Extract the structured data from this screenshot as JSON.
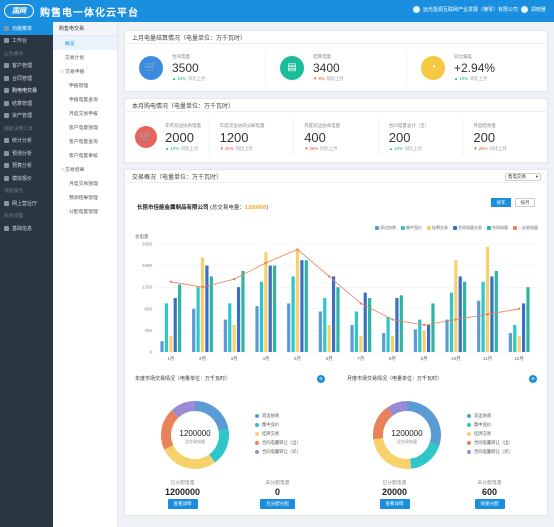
{
  "header": {
    "logo": "国网",
    "title": "购售电一体化云平台",
    "company": "远光能源互联网产业发展（横琴）有限公司",
    "user": "郑晓雅"
  },
  "sidebar": [
    {
      "label": "功能菜单",
      "type": "item",
      "active": true
    },
    {
      "label": "工作台",
      "type": "item"
    },
    {
      "label": "业务模块",
      "type": "group"
    },
    {
      "label": "客户管理",
      "type": "item"
    },
    {
      "label": "合同管理",
      "type": "item"
    },
    {
      "label": "购电电交易",
      "type": "item",
      "highlight": true
    },
    {
      "label": "结算管理",
      "type": "item"
    },
    {
      "label": "资产管理",
      "type": "item"
    },
    {
      "label": "辅助决策工具",
      "type": "group"
    },
    {
      "label": "统计分析",
      "type": "item"
    },
    {
      "label": "预测分析",
      "type": "item"
    },
    {
      "label": "预算分析",
      "type": "item"
    },
    {
      "label": "模拟报价",
      "type": "item"
    },
    {
      "label": "增值服务",
      "type": "group"
    },
    {
      "label": "网上营业厅",
      "type": "item"
    },
    {
      "label": "系统设置",
      "type": "group"
    },
    {
      "label": "基础信息",
      "type": "item"
    }
  ],
  "subnav": {
    "head": "购售电交易",
    "items": [
      {
        "label": "概览",
        "cls": "active"
      },
      {
        "label": "交易计划",
        "cls": ""
      },
      {
        "label": "○ 交易申报",
        "cls": "grp"
      },
      {
        "label": "申报管理",
        "cls": "l2"
      },
      {
        "label": "申报电量查询",
        "cls": "l2"
      },
      {
        "label": "月度交易申报",
        "cls": "l2"
      },
      {
        "label": "客户电量管理",
        "cls": "l2"
      },
      {
        "label": "客户电量查询",
        "cls": "l2"
      },
      {
        "label": "客户电量审核",
        "cls": "l2"
      },
      {
        "label": "○ 交易结果",
        "cls": "grp"
      },
      {
        "label": "月度交易管理",
        "cls": "l2"
      },
      {
        "label": "预测结果管理",
        "cls": "l2"
      },
      {
        "label": "分配电量管理",
        "cls": "l2"
      }
    ]
  },
  "last_month": {
    "title": "上月电量结算情况（电量单位：万千瓦时）",
    "stats": [
      {
        "label": "合同电量",
        "value": "3500",
        "change": "10%",
        "dir": "up",
        "cmp": "同比上月",
        "color": "#3b8be0",
        "icon": "cart-icon",
        "glyph": "🛒"
      },
      {
        "label": "结算电量",
        "value": "3400",
        "change": "8%",
        "dir": "down",
        "cmp": "同比上月",
        "color": "#1abc9c",
        "icon": "doc-icon",
        "glyph": "▤"
      },
      {
        "label": "同比偏差",
        "value": "+2.94%",
        "change": "10%",
        "dir": "up",
        "cmp": "同比上月",
        "color": "#f5c842",
        "icon": "gauge-icon",
        "glyph": "◔"
      }
    ]
  },
  "this_month": {
    "title": "本月购电情况（电量单位：万千瓦时）",
    "icon": "cart-icon",
    "stats": [
      {
        "label": "年月双边协商电量",
        "value": "2000",
        "change": "10%",
        "dir": "up",
        "cmp": "同比上月"
      },
      {
        "label": "年度双边协商分解电量",
        "value": "1200",
        "change": "26%",
        "dir": "down",
        "cmp": "同比上月"
      },
      {
        "label": "月度双边协商电量",
        "value": "400",
        "change": "26%",
        "dir": "down",
        "cmp": "同比上月"
      },
      {
        "label": "合同电量总计（吉）",
        "value": "200",
        "change": "10%",
        "dir": "up",
        "cmp": "同比上月"
      },
      {
        "label": "月度结余量",
        "value": "200",
        "change": "26%",
        "dir": "down",
        "cmp": "同比上月"
      }
    ]
  },
  "transaction": {
    "title": "交易概况（电量单位：万千瓦时）",
    "dropdown": "售电交易",
    "org": "长昆市佳能金属制品有限公司",
    "org_label": "(总交易电量：",
    "org_amount": "1200000",
    "org_end": ")",
    "btn_year": "按年",
    "btn_month": "按月",
    "legend": [
      {
        "name": "双边协商",
        "color": "#5b9bd5"
      },
      {
        "name": "集中竞价",
        "color": "#2ec7c9"
      },
      {
        "name": "挂牌交易",
        "color": "#f7d16b"
      },
      {
        "name": "合同电量交易",
        "color": "#3c6fbf"
      },
      {
        "name": "合同电量",
        "color": "#2eb5a0"
      },
      {
        "name": "—交易电量",
        "color": "#e8825a"
      }
    ]
  },
  "chart_data": {
    "type": "bar",
    "ylabel": "总电量",
    "ylim": [
      0,
      2000
    ],
    "yticks": [
      0,
      400,
      800,
      1200,
      1600,
      2000
    ],
    "categories": [
      "1月",
      "2月",
      "3月",
      "4月",
      "5月",
      "6月",
      "7月",
      "8月",
      "9月",
      "10月",
      "11月",
      "12月"
    ],
    "series": [
      {
        "name": "双边协商",
        "color": "#5b9bd5",
        "values": [
          200,
          800,
          600,
          850,
          900,
          750,
          500,
          350,
          420,
          600,
          950,
          350
        ]
      },
      {
        "name": "集中竞价",
        "color": "#2ec7c9",
        "values": [
          900,
          1200,
          900,
          1300,
          1400,
          1000,
          750,
          650,
          600,
          1100,
          1300,
          500
        ]
      },
      {
        "name": "挂牌交易",
        "color": "#f7d16b",
        "values": [
          300,
          1750,
          500,
          1850,
          1900,
          500,
          300,
          300,
          400,
          1700,
          1950,
          300
        ]
      },
      {
        "name": "合同电量交易",
        "color": "#3c6fbf",
        "values": [
          1000,
          1600,
          1200,
          1600,
          1700,
          1400,
          1100,
          1000,
          500,
          1400,
          1400,
          900
        ]
      },
      {
        "name": "合同电量",
        "color": "#2eb5a0",
        "values": [
          1250,
          1400,
          1500,
          1600,
          1700,
          1200,
          1000,
          1050,
          900,
          1300,
          1500,
          1200
        ]
      }
    ],
    "line": {
      "name": "交易电量",
      "color": "#e8825a",
      "values": [
        1300,
        1200,
        1350,
        1650,
        1900,
        1400,
        900,
        600,
        500,
        600,
        700,
        800
      ]
    }
  },
  "yearly": {
    "title": "年度市场交易情况（电量单位：万千瓦时）",
    "center_value": "1200000",
    "center_label": "总交易电量",
    "legend": [
      "双边协商",
      "集中竞价",
      "挂牌交易",
      "合同电量转让（出）",
      "合同电量转让（买）"
    ],
    "slices": [
      22,
      18,
      28,
      20,
      12
    ],
    "counts": [
      {
        "label": "已分配电量",
        "value": "1200000",
        "button": "查看详情"
      },
      {
        "label": "未分配电量",
        "value": "0",
        "button": "已分配分配"
      }
    ]
  },
  "monthly": {
    "title": "月度市场交易情况（电量单位：万千瓦时）",
    "center_value": "1200000",
    "center_label": "总交易电量",
    "legend": [
      "双边协商",
      "集中竞价",
      "挂牌交易",
      "合同电量转让（出）",
      "合同电量转让（买）"
    ],
    "slices": [
      30,
      18,
      25,
      17,
      10
    ],
    "counts": [
      {
        "label": "已分配电量",
        "value": "20000",
        "button": "查看详情"
      },
      {
        "label": "未分配电量",
        "value": "600",
        "button": "快速分配"
      }
    ]
  },
  "donut_colors": [
    "#5b9bd5",
    "#2ec7c9",
    "#f7d16b",
    "#e8825a",
    "#9b8bd6"
  ]
}
